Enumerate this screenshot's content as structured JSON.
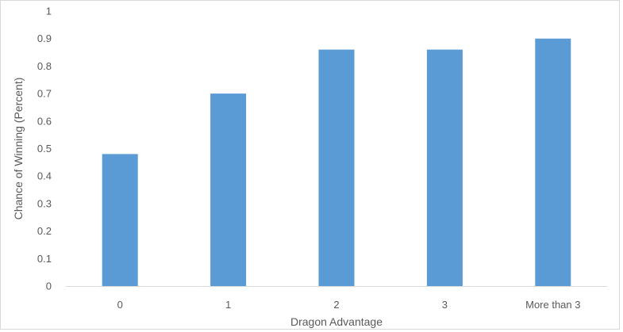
{
  "chart_data": {
    "type": "bar",
    "categories": [
      "0",
      "1",
      "2",
      "3",
      "More than 3"
    ],
    "values": [
      0.48,
      0.7,
      0.86,
      0.86,
      0.9
    ],
    "xlabel": "Dragon Advantage",
    "ylabel": "Chance of Winning (Percent)",
    "ylim": [
      0,
      1
    ],
    "yticks": [
      "0",
      "0.1",
      "0.2",
      "0.3",
      "0.4",
      "0.5",
      "0.6",
      "0.7",
      "0.8",
      "0.9",
      "1"
    ],
    "grid": false,
    "legend": "none",
    "bar_color": "#5b9bd5",
    "axis_color": "#d9d9d9",
    "text_color": "#595959"
  }
}
